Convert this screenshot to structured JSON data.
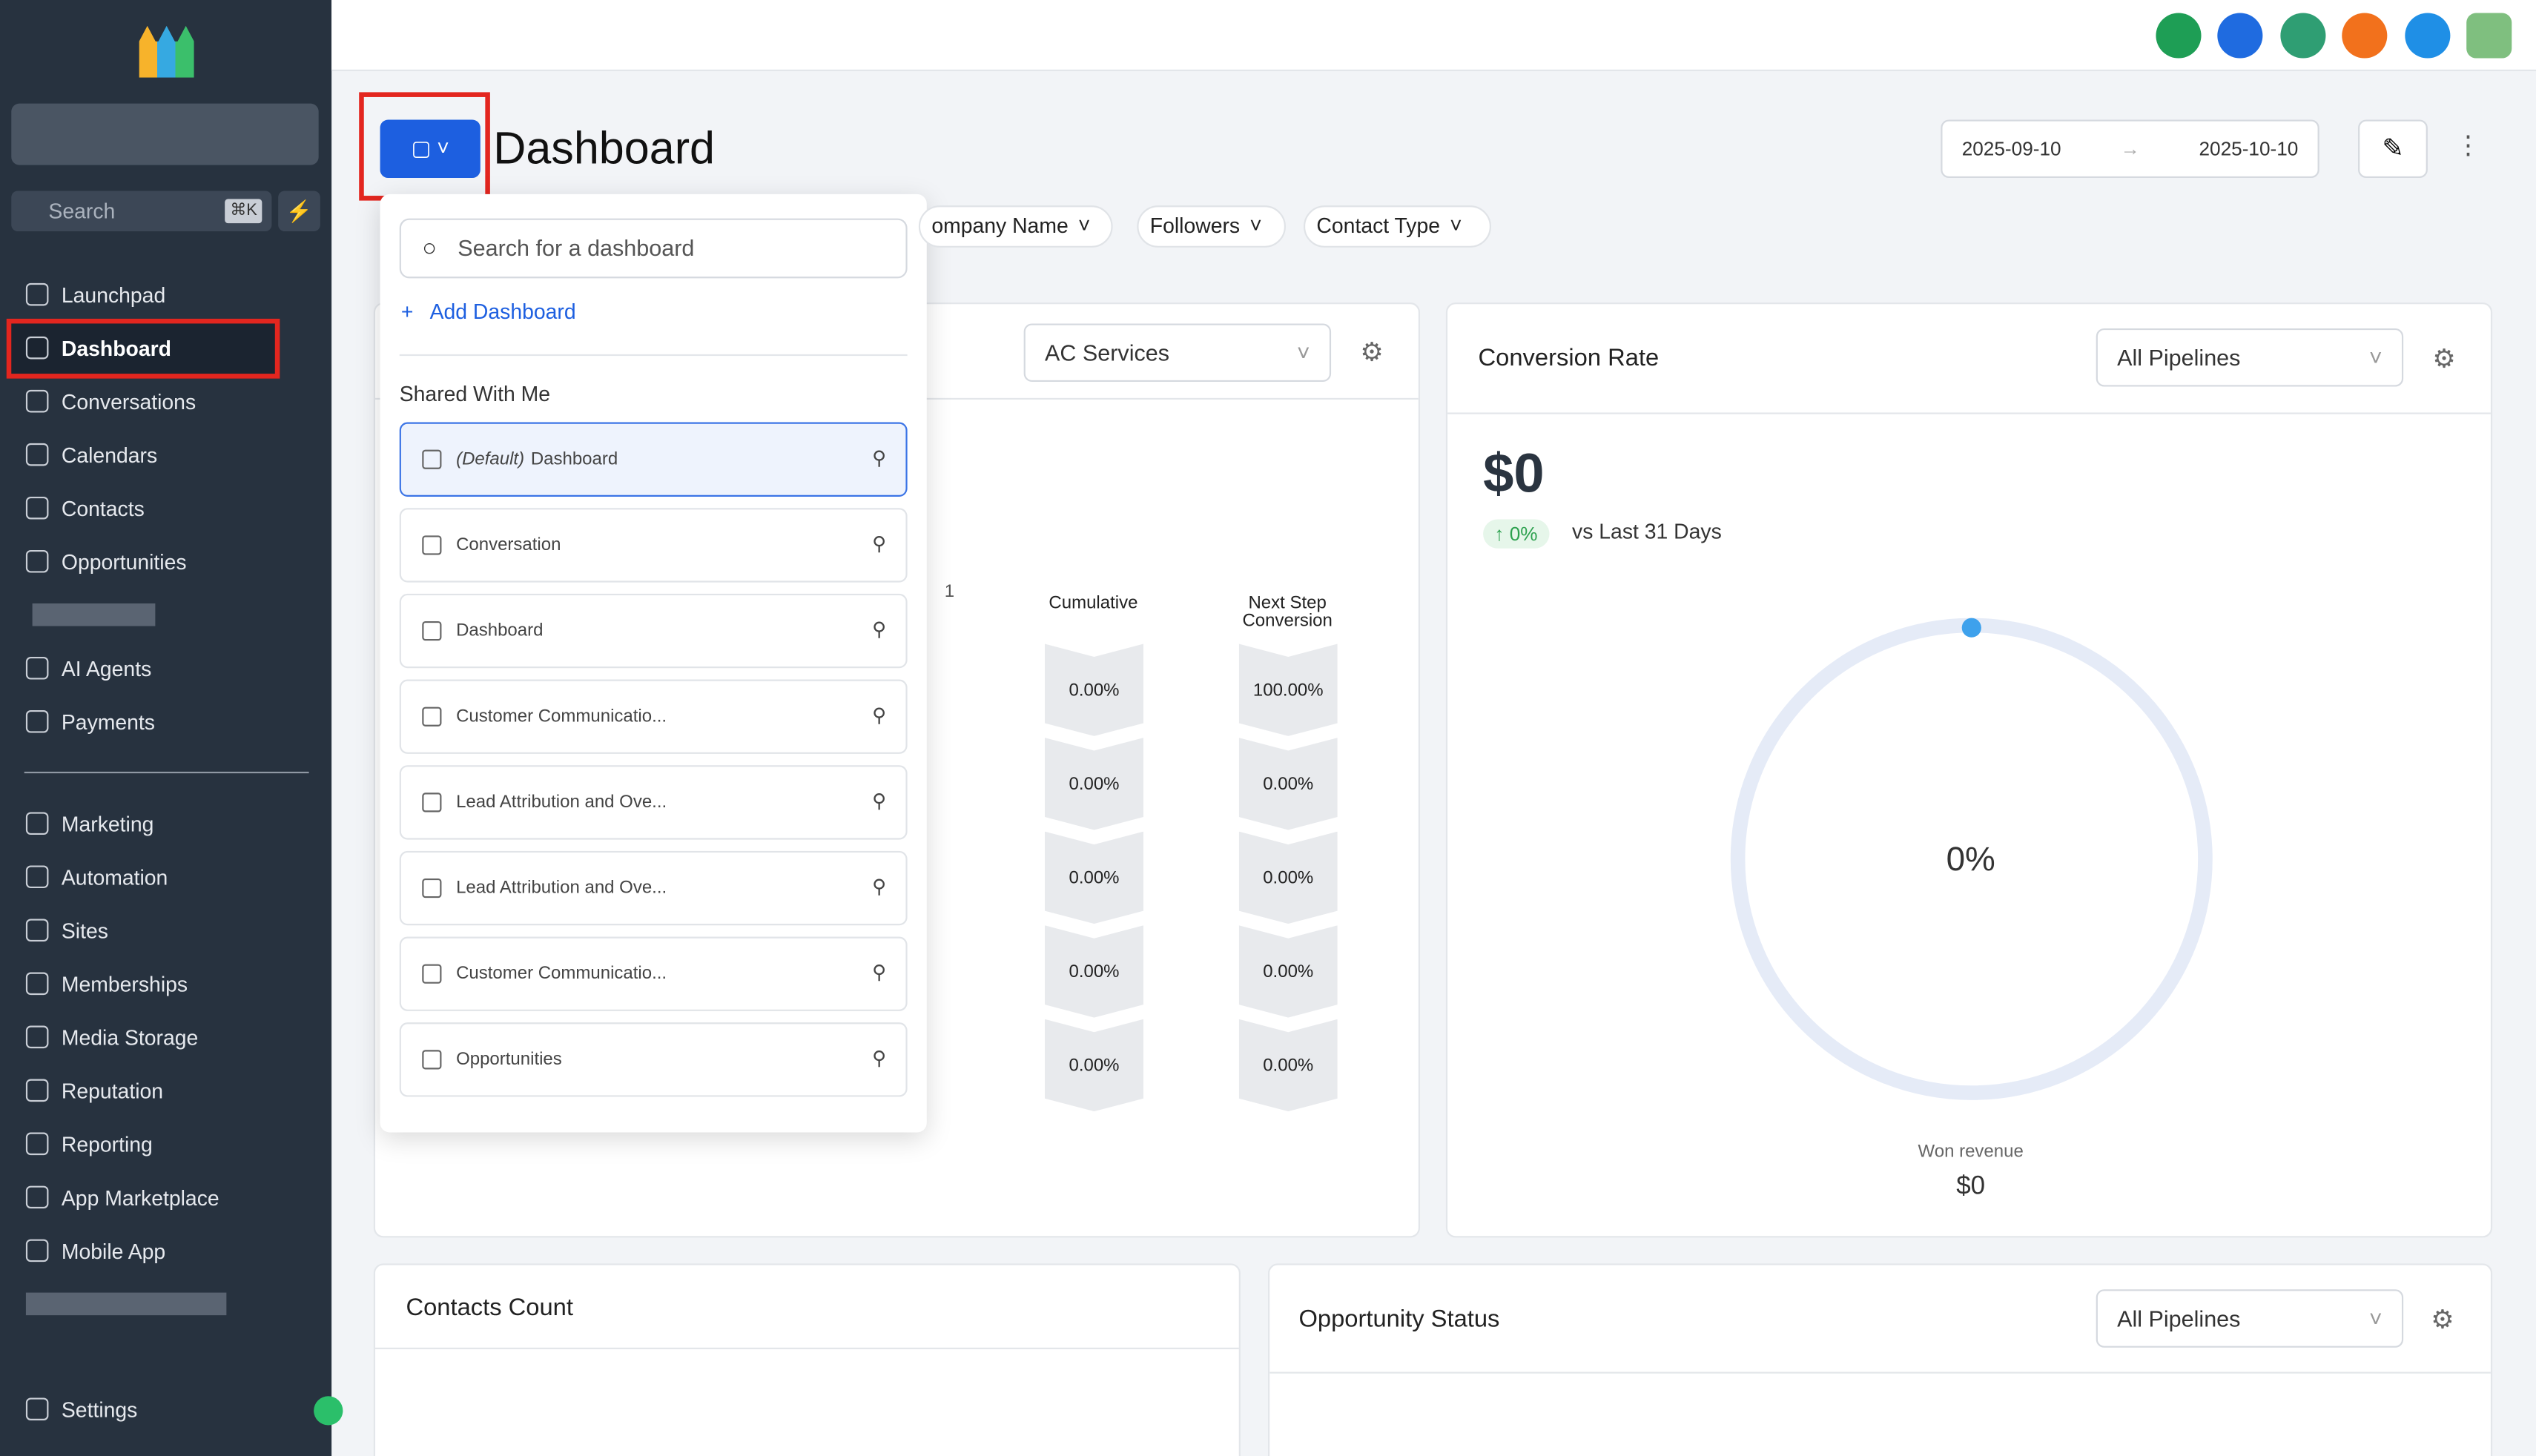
{
  "sidebar": {
    "search": "Search",
    "shortcut": "⌘K",
    "nav_top": [
      "Launchpad",
      "Dashboard",
      "Conversations",
      "Calendars",
      "Contacts",
      "Opportunities",
      "AI Agents",
      "Payments"
    ],
    "nav_bottom": [
      "Marketing",
      "Automation",
      "Sites",
      "Memberships",
      "Media Storage",
      "Reputation",
      "Reporting",
      "App Marketplace",
      "Mobile App"
    ],
    "settings": "Settings"
  },
  "header": {
    "title": "Dashboard",
    "date_start": "2025-09-10",
    "date_end": "2025-10-10"
  },
  "filters": [
    "ompany Name",
    "Followers",
    "Contact Type"
  ],
  "dropdown": {
    "search_placeholder": "Search for a dashboard",
    "add": "Add Dashboard",
    "section": "Shared With Me",
    "default_prefix": "(Default)",
    "items": [
      "Dashboard",
      "Conversation",
      "Dashboard",
      "Customer Communicatio...",
      "Lead Attribution and Ove...",
      "Lead Attribution and Ove...",
      "Customer Communicatio...",
      "Opportunities"
    ]
  },
  "funnel_card": {
    "select": "AC Services",
    "column_1": "1",
    "columns": [
      "Cumulative",
      "Next Step Conversion"
    ],
    "rows": [
      [
        "0.00%",
        "100.00%"
      ],
      [
        "0.00%",
        "0.00%"
      ],
      [
        "0.00%",
        "0.00%"
      ],
      [
        "0.00%",
        "0.00%"
      ],
      [
        "0.00%",
        "0.00%"
      ]
    ]
  },
  "conversion_card": {
    "title": "Conversion Rate",
    "select": "All Pipelines",
    "amount": "$0",
    "change": "0%",
    "period": "vs Last 31 Days",
    "gauge": "0%",
    "won_label": "Won revenue",
    "won_value": "$0"
  },
  "contacts_card": {
    "title": "Contacts Count"
  },
  "opportunity_card": {
    "title": "Opportunity Status",
    "select": "All Pipelines"
  }
}
